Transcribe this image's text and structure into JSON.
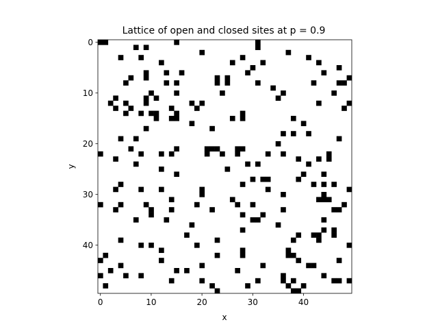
{
  "chart_data": {
    "type": "heatmap",
    "title": "Lattice of open and closed sites at p = 0.9",
    "xlabel": "x",
    "ylabel": "y",
    "rows": 50,
    "cols": 50,
    "xlim": [
      -0.5,
      49.5
    ],
    "ylim": [
      49.5,
      -0.5
    ],
    "y_axis_inverted": true,
    "x_ticks": [
      0,
      10,
      20,
      30,
      40
    ],
    "y_ticks": [
      0,
      10,
      20,
      30,
      40
    ],
    "grid": false,
    "colormap": {
      "open": "#ffffff",
      "closed": "#000000"
    },
    "closed_sites": [
      [
        0,
        0
      ],
      [
        0,
        1
      ],
      [
        0,
        15
      ],
      [
        0,
        31
      ],
      [
        1,
        7
      ],
      [
        1,
        9
      ],
      [
        1,
        31
      ],
      [
        2,
        20
      ],
      [
        2,
        37
      ],
      [
        3,
        4
      ],
      [
        3,
        8
      ],
      [
        3,
        28
      ],
      [
        3,
        41
      ],
      [
        4,
        12
      ],
      [
        4,
        26
      ],
      [
        4,
        32
      ],
      [
        4,
        43
      ],
      [
        5,
        30
      ],
      [
        5,
        47
      ],
      [
        6,
        9
      ],
      [
        6,
        13
      ],
      [
        6,
        16
      ],
      [
        6,
        29
      ],
      [
        6,
        44
      ],
      [
        7,
        6
      ],
      [
        7,
        9
      ],
      [
        7,
        23
      ],
      [
        7,
        25
      ],
      [
        7,
        49
      ],
      [
        8,
        5
      ],
      [
        8,
        13
      ],
      [
        8,
        15
      ],
      [
        8,
        23
      ],
      [
        8,
        25
      ],
      [
        8,
        31
      ],
      [
        8,
        42
      ],
      [
        8,
        47
      ],
      [
        8,
        48
      ],
      [
        9,
        34
      ],
      [
        10,
        10
      ],
      [
        10,
        15
      ],
      [
        10,
        24
      ],
      [
        10,
        36
      ],
      [
        10,
        46
      ],
      [
        11,
        3
      ],
      [
        11,
        9
      ],
      [
        11,
        11
      ],
      [
        11,
        35
      ],
      [
        12,
        2
      ],
      [
        12,
        5
      ],
      [
        12,
        9
      ],
      [
        12,
        18
      ],
      [
        12,
        20
      ],
      [
        12,
        43
      ],
      [
        12,
        49
      ],
      [
        13,
        3
      ],
      [
        13,
        6
      ],
      [
        13,
        14
      ],
      [
        13,
        19
      ],
      [
        13,
        48
      ],
      [
        14,
        5
      ],
      [
        14,
        8
      ],
      [
        14,
        10
      ],
      [
        14,
        11
      ],
      [
        14,
        15
      ],
      [
        14,
        28
      ],
      [
        15,
        11
      ],
      [
        15,
        14
      ],
      [
        15,
        15
      ],
      [
        15,
        26
      ],
      [
        15,
        28
      ],
      [
        15,
        38
      ],
      [
        16,
        18
      ],
      [
        16,
        40
      ],
      [
        17,
        9
      ],
      [
        17,
        22
      ],
      [
        18,
        36
      ],
      [
        18,
        38
      ],
      [
        18,
        41
      ],
      [
        19,
        4
      ],
      [
        19,
        7
      ],
      [
        19,
        47
      ],
      [
        20,
        35
      ],
      [
        21,
        6
      ],
      [
        21,
        15
      ],
      [
        21,
        21
      ],
      [
        21,
        22
      ],
      [
        21,
        23
      ],
      [
        21,
        27
      ],
      [
        21,
        28
      ],
      [
        22,
        0
      ],
      [
        22,
        8
      ],
      [
        22,
        12
      ],
      [
        22,
        14
      ],
      [
        22,
        21
      ],
      [
        22,
        24
      ],
      [
        22,
        27
      ],
      [
        22,
        33
      ],
      [
        22,
        36
      ],
      [
        22,
        45
      ],
      [
        23,
        3
      ],
      [
        23,
        39
      ],
      [
        23,
        43
      ],
      [
        23,
        45
      ],
      [
        24,
        7
      ],
      [
        24,
        29
      ],
      [
        24,
        31
      ],
      [
        24,
        41
      ],
      [
        25,
        12
      ],
      [
        25,
        25
      ],
      [
        26,
        15
      ],
      [
        26,
        40
      ],
      [
        26,
        44
      ],
      [
        27,
        30
      ],
      [
        27,
        32
      ],
      [
        27,
        33
      ],
      [
        27,
        39
      ],
      [
        28,
        4
      ],
      [
        28,
        28
      ],
      [
        28,
        42
      ],
      [
        28,
        44
      ],
      [
        28,
        46
      ],
      [
        29,
        3
      ],
      [
        29,
        8
      ],
      [
        29,
        12
      ],
      [
        29,
        20
      ],
      [
        29,
        33
      ],
      [
        29,
        49
      ],
      [
        30,
        20
      ],
      [
        30,
        36
      ],
      [
        30,
        44
      ],
      [
        31,
        14
      ],
      [
        31,
        26
      ],
      [
        31,
        43
      ],
      [
        31,
        44
      ],
      [
        31,
        45
      ],
      [
        32,
        0
      ],
      [
        32,
        4
      ],
      [
        32,
        9
      ],
      [
        32,
        19
      ],
      [
        32,
        27
      ],
      [
        32,
        30
      ],
      [
        32,
        48
      ],
      [
        33,
        3
      ],
      [
        33,
        10
      ],
      [
        33,
        14
      ],
      [
        33,
        22
      ],
      [
        33,
        36
      ],
      [
        33,
        46
      ],
      [
        33,
        47
      ],
      [
        34,
        10
      ],
      [
        34,
        28
      ],
      [
        34,
        32
      ],
      [
        35,
        7
      ],
      [
        35,
        13
      ],
      [
        35,
        30
      ],
      [
        35,
        31
      ],
      [
        35,
        44
      ],
      [
        36,
        18
      ],
      [
        36,
        35
      ],
      [
        37,
        28
      ],
      [
        37,
        44
      ],
      [
        37,
        46
      ],
      [
        38,
        17
      ],
      [
        38,
        39
      ],
      [
        38,
        42
      ],
      [
        38,
        43
      ],
      [
        38,
        46
      ],
      [
        39,
        4
      ],
      [
        39,
        23
      ],
      [
        39,
        38
      ],
      [
        39,
        43
      ],
      [
        40,
        8
      ],
      [
        40,
        10
      ],
      [
        40,
        19
      ],
      [
        40,
        49
      ],
      [
        41,
        12
      ],
      [
        41,
        28
      ],
      [
        41,
        37
      ],
      [
        42,
        1
      ],
      [
        42,
        23
      ],
      [
        42,
        28
      ],
      [
        42,
        37
      ],
      [
        42,
        38
      ],
      [
        43,
        0
      ],
      [
        43,
        12
      ],
      [
        43,
        39
      ],
      [
        43,
        47
      ],
      [
        44,
        4
      ],
      [
        44,
        20
      ],
      [
        44,
        32
      ],
      [
        44,
        41
      ],
      [
        44,
        42
      ],
      [
        45,
        2
      ],
      [
        45,
        15
      ],
      [
        45,
        17
      ],
      [
        45,
        27
      ],
      [
        46,
        0
      ],
      [
        46,
        5
      ],
      [
        46,
        8
      ],
      [
        46,
        36
      ],
      [
        46,
        44
      ],
      [
        47,
        14
      ],
      [
        47,
        20
      ],
      [
        47,
        31
      ],
      [
        47,
        36
      ],
      [
        47,
        38
      ],
      [
        47,
        46
      ],
      [
        47,
        47
      ],
      [
        47,
        49
      ],
      [
        48,
        1
      ],
      [
        48,
        22
      ],
      [
        48,
        29
      ],
      [
        48,
        37
      ],
      [
        48,
        40
      ],
      [
        49,
        23
      ],
      [
        49,
        38
      ],
      [
        49,
        39
      ]
    ]
  }
}
